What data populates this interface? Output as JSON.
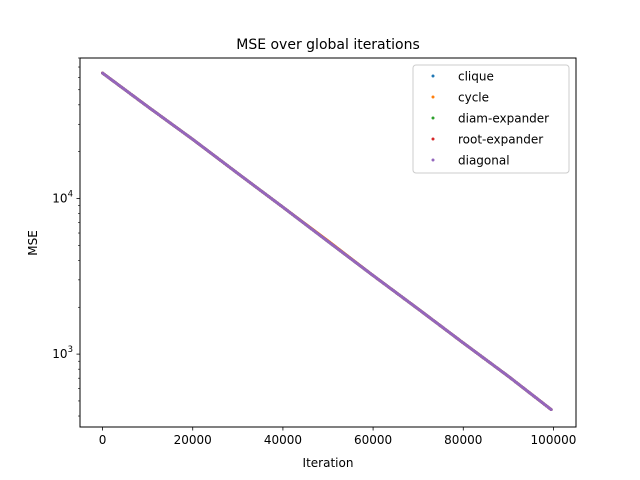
{
  "chart_data": {
    "type": "scatter",
    "title": "MSE over global iterations",
    "xlabel": "Iteration",
    "ylabel": "MSE",
    "xscale": "linear",
    "yscale": "log",
    "xlim": [
      -5000,
      105000
    ],
    "ylim": [
      340,
      80000
    ],
    "x_ticks": [
      0,
      20000,
      40000,
      60000,
      80000,
      100000
    ],
    "x_tick_labels": [
      "0",
      "20000",
      "40000",
      "60000",
      "80000",
      "100000"
    ],
    "y_ticks": [
      1000,
      10000
    ],
    "y_tick_labels": [
      {
        "base": "10",
        "exp": "3"
      },
      {
        "base": "10",
        "exp": "4"
      }
    ],
    "grid": false,
    "legend_position": "top-right",
    "x": [
      0,
      10000,
      20000,
      30000,
      40000,
      50000,
      60000,
      70000,
      80000,
      90000,
      99500
    ],
    "series": [
      {
        "name": "clique",
        "color": "#1f77b4",
        "values": [
          64000,
          39000,
          24000,
          14500,
          8800,
          5300,
          3200,
          1950,
          1180,
          720,
          440
        ]
      },
      {
        "name": "cycle",
        "color": "#ff7f0e",
        "values": [
          64000,
          39000,
          24000,
          14500,
          8800,
          5350,
          3200,
          1950,
          1180,
          720,
          440
        ]
      },
      {
        "name": "diam-expander",
        "color": "#2ca02c",
        "values": [
          64000,
          39000,
          24000,
          14500,
          8800,
          5300,
          3200,
          1950,
          1180,
          720,
          440
        ]
      },
      {
        "name": "root-expander",
        "color": "#d62728",
        "values": [
          64000,
          39000,
          24000,
          14500,
          8800,
          5300,
          3200,
          1950,
          1180,
          720,
          440
        ]
      },
      {
        "name": "diagonal",
        "color": "#9467bd",
        "values": [
          64000,
          39000,
          24000,
          14500,
          8800,
          5300,
          3200,
          1950,
          1180,
          720,
          440
        ]
      }
    ]
  }
}
